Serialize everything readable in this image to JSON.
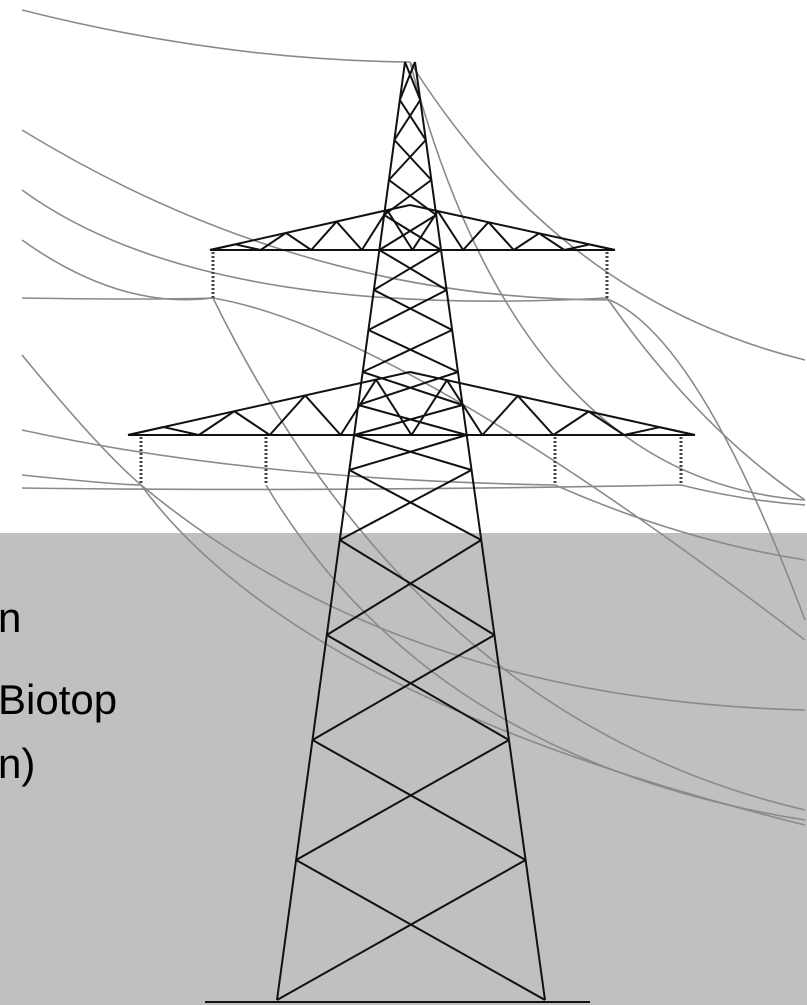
{
  "text_lines": [
    "n",
    "Biotop",
    "n)"
  ]
}
